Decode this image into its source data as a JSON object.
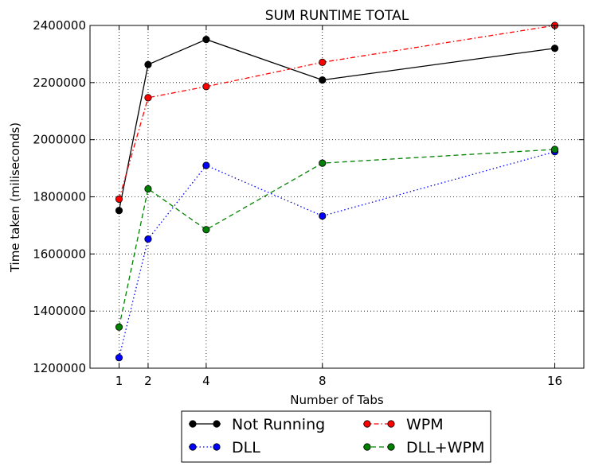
{
  "chart_data": {
    "type": "line",
    "title": "SUM RUNTIME TOTAL",
    "xlabel": "Number of Tabs",
    "ylabel": "Time taken (miliseconds)",
    "x": [
      1,
      2,
      4,
      8,
      16
    ],
    "xlim": [
      0,
      17
    ],
    "ylim": [
      1200000,
      2400000
    ],
    "xticks": [
      1,
      2,
      4,
      8,
      16
    ],
    "yticks": [
      1200000,
      1400000,
      1600000,
      1800000,
      2000000,
      2200000,
      2400000
    ],
    "grid": true,
    "legend_position": "below plot, centered",
    "series": [
      {
        "name": "Not Running",
        "color": "#000000",
        "line_style": "solid",
        "values": [
          1752000,
          2263000,
          2351000,
          2209000,
          2320000
        ]
      },
      {
        "name": "WPM",
        "color": "#ff0000",
        "line_style": "dash-dot",
        "values": [
          1792000,
          2147000,
          2186000,
          2271000,
          2400000
        ]
      },
      {
        "name": "DLL",
        "color": "#0000ff",
        "line_style": "dotted",
        "values": [
          1237000,
          1652000,
          1910000,
          1733000,
          1958000
        ]
      },
      {
        "name": "DLL+WPM",
        "color": "#008000",
        "line_style": "dashed",
        "values": [
          1344000,
          1828000,
          1685000,
          1918000,
          1966000
        ]
      }
    ]
  }
}
